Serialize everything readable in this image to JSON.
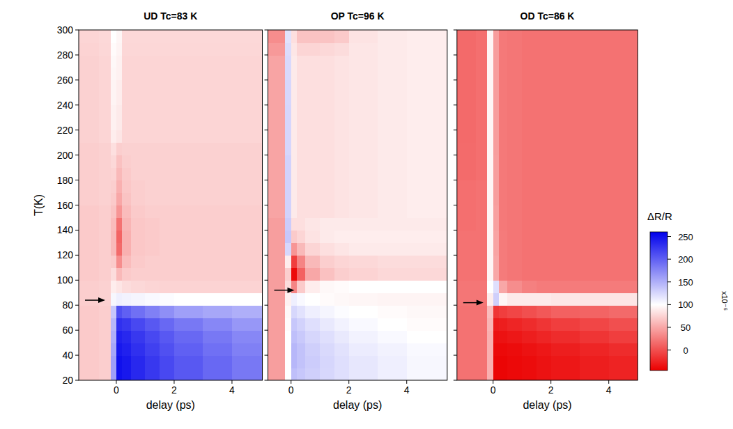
{
  "chart_data": [
    {
      "type": "heatmap",
      "title": "UD Tc=83 K",
      "xlabel": "delay (ps)",
      "ylabel": "T(K)",
      "xlim": [
        -1.3,
        5.05
      ],
      "ylim": [
        20,
        300
      ],
      "xticks": [
        0,
        2,
        4
      ],
      "yticks": [
        20,
        40,
        60,
        80,
        100,
        120,
        140,
        160,
        180,
        200,
        220,
        240,
        260,
        280,
        300
      ],
      "x_bins": [
        -1.3,
        -0.6,
        -0.2,
        0,
        0.2,
        0.5,
        1,
        1.5,
        2,
        3,
        4,
        5.05
      ],
      "y_bins": [
        20,
        30,
        40,
        50,
        60,
        70,
        80,
        90,
        100,
        110,
        120,
        130,
        140,
        150,
        160,
        170,
        180,
        190,
        200,
        210,
        220,
        230,
        240,
        250,
        260,
        270,
        280,
        290,
        300
      ],
      "arrow_y": 84,
      "cells": [
        [
          70,
          72,
          160,
          250,
          245,
          235,
          225,
          215,
          205,
          195,
          185
        ],
        [
          70,
          72,
          160,
          250,
          245,
          235,
          225,
          215,
          205,
          195,
          185
        ],
        [
          70,
          72,
          155,
          245,
          240,
          230,
          220,
          210,
          200,
          190,
          180
        ],
        [
          70,
          72,
          150,
          240,
          235,
          225,
          215,
          205,
          195,
          185,
          175
        ],
        [
          70,
          72,
          145,
          230,
          225,
          215,
          205,
          195,
          185,
          175,
          165
        ],
        [
          70,
          72,
          135,
          210,
          200,
          190,
          180,
          170,
          160,
          155,
          150
        ],
        [
          72,
          74,
          105,
          110,
          108,
          106,
          104,
          102,
          100,
          100,
          100
        ],
        [
          72,
          74,
          90,
          85,
          80,
          78,
          76,
          75,
          75,
          75,
          75
        ],
        [
          70,
          72,
          80,
          60,
          70,
          72,
          72,
          72,
          72,
          72,
          72
        ],
        [
          70,
          72,
          70,
          35,
          62,
          70,
          72,
          72,
          72,
          72,
          72
        ],
        [
          70,
          72,
          60,
          15,
          55,
          68,
          70,
          72,
          72,
          72,
          72
        ],
        [
          70,
          72,
          60,
          12,
          55,
          68,
          70,
          72,
          72,
          72,
          72
        ],
        [
          70,
          72,
          62,
          20,
          58,
          68,
          70,
          72,
          72,
          72,
          72
        ],
        [
          70,
          72,
          66,
          40,
          62,
          70,
          72,
          72,
          72,
          72,
          72
        ],
        [
          72,
          74,
          70,
          50,
          66,
          72,
          74,
          74,
          74,
          74,
          74
        ],
        [
          72,
          74,
          72,
          55,
          68,
          72,
          74,
          74,
          74,
          74,
          74
        ],
        [
          72,
          74,
          75,
          60,
          70,
          74,
          74,
          74,
          74,
          74,
          74
        ],
        [
          72,
          74,
          78,
          65,
          72,
          74,
          74,
          74,
          74,
          74,
          74
        ],
        [
          72,
          74,
          82,
          72,
          74,
          74,
          74,
          74,
          74,
          74,
          74
        ],
        [
          74,
          76,
          90,
          85,
          76,
          76,
          76,
          76,
          76,
          76,
          76
        ],
        [
          74,
          76,
          92,
          88,
          76,
          76,
          76,
          76,
          76,
          76,
          76
        ],
        [
          74,
          76,
          92,
          88,
          76,
          76,
          76,
          76,
          76,
          76,
          76
        ],
        [
          74,
          76,
          94,
          90,
          76,
          76,
          76,
          76,
          76,
          76,
          76
        ],
        [
          74,
          76,
          94,
          90,
          76,
          76,
          76,
          76,
          76,
          76,
          76
        ],
        [
          74,
          76,
          95,
          92,
          76,
          76,
          76,
          76,
          76,
          76,
          76
        ],
        [
          74,
          76,
          96,
          92,
          76,
          76,
          76,
          76,
          76,
          76,
          76
        ],
        [
          75,
          77,
          98,
          94,
          77,
          77,
          77,
          77,
          77,
          77,
          77
        ],
        [
          76,
          78,
          100,
          95,
          78,
          78,
          78,
          78,
          78,
          78,
          78
        ]
      ]
    },
    {
      "type": "heatmap",
      "title": "OP Tc=96 K",
      "xlabel": "delay (ps)",
      "tick_labels": "x",
      "xlim": [
        -0.8,
        5.4
      ],
      "ylim": [
        20,
        300
      ],
      "xticks": [
        0,
        2,
        4
      ],
      "yticks": [
        20,
        40,
        60,
        80,
        100,
        120,
        140,
        160,
        180,
        200,
        220,
        240,
        260,
        280,
        300
      ],
      "x_bins": [
        -0.8,
        -0.5,
        -0.2,
        0,
        0.2,
        0.5,
        1,
        1.5,
        2,
        3,
        4,
        5.4
      ],
      "y_bins": [
        20,
        30,
        40,
        50,
        60,
        70,
        80,
        90,
        100,
        110,
        120,
        130,
        140,
        150,
        160,
        170,
        180,
        190,
        200,
        210,
        220,
        230,
        240,
        250,
        260,
        270,
        280,
        290,
        300
      ],
      "arrow_y": 92,
      "cells": [
        [
          45,
          45,
          100,
          140,
          135,
          130,
          125,
          120,
          115,
          110,
          105
        ],
        [
          45,
          45,
          100,
          145,
          138,
          132,
          126,
          120,
          115,
          110,
          105
        ],
        [
          45,
          45,
          100,
          145,
          138,
          130,
          124,
          118,
          112,
          108,
          104
        ],
        [
          45,
          45,
          100,
          140,
          134,
          126,
          120,
          114,
          108,
          104,
          100
        ],
        [
          45,
          45,
          98,
          135,
          128,
          120,
          114,
          108,
          104,
          100,
          98
        ],
        [
          45,
          45,
          96,
          125,
          118,
          110,
          106,
          102,
          100,
          98,
          96
        ],
        [
          45,
          45,
          92,
          110,
          104,
          100,
          98,
          96,
          95,
          94,
          94
        ],
        [
          45,
          45,
          80,
          30,
          70,
          90,
          96,
          98,
          100,
          100,
          100
        ],
        [
          45,
          45,
          72,
          -40,
          10,
          50,
          65,
          72,
          75,
          78,
          78
        ],
        [
          45,
          45,
          90,
          -10,
          30,
          60,
          72,
          76,
          78,
          80,
          80
        ],
        [
          45,
          45,
          125,
          40,
          60,
          76,
          82,
          85,
          88,
          88,
          88
        ],
        [
          45,
          45,
          135,
          70,
          76,
          84,
          88,
          90,
          90,
          90,
          90
        ],
        [
          45,
          45,
          132,
          82,
          82,
          86,
          88,
          88,
          88,
          88,
          88
        ],
        [
          48,
          48,
          128,
          88,
          82,
          82,
          82,
          84,
          86,
          88,
          90
        ],
        [
          48,
          48,
          128,
          88,
          82,
          82,
          82,
          84,
          86,
          88,
          90
        ],
        [
          48,
          48,
          128,
          88,
          82,
          82,
          82,
          84,
          86,
          88,
          90
        ],
        [
          48,
          48,
          128,
          88,
          82,
          82,
          82,
          84,
          86,
          88,
          90
        ],
        [
          48,
          48,
          128,
          88,
          82,
          82,
          82,
          84,
          86,
          88,
          90
        ],
        [
          48,
          48,
          126,
          88,
          82,
          82,
          82,
          84,
          86,
          88,
          90
        ],
        [
          48,
          48,
          126,
          88,
          82,
          82,
          82,
          84,
          86,
          88,
          90
        ],
        [
          48,
          48,
          126,
          88,
          82,
          82,
          82,
          84,
          86,
          88,
          90
        ],
        [
          48,
          48,
          126,
          88,
          82,
          82,
          82,
          84,
          86,
          88,
          90
        ],
        [
          48,
          48,
          125,
          88,
          82,
          82,
          82,
          84,
          86,
          88,
          90
        ],
        [
          48,
          48,
          125,
          88,
          82,
          82,
          82,
          84,
          86,
          88,
          90
        ],
        [
          48,
          48,
          124,
          88,
          82,
          82,
          82,
          84,
          86,
          88,
          90
        ],
        [
          48,
          48,
          124,
          88,
          82,
          82,
          82,
          84,
          86,
          88,
          90
        ],
        [
          42,
          42,
          122,
          86,
          76,
          76,
          78,
          80,
          86,
          88,
          90
        ],
        [
          35,
          35,
          118,
          82,
          66,
          66,
          66,
          70,
          84,
          88,
          90
        ]
      ]
    },
    {
      "type": "heatmap",
      "title": "OD Tc=86 K",
      "xlabel": "delay (ps)",
      "tick_labels": "x",
      "xlim": [
        -1.25,
        5.0
      ],
      "ylim": [
        20,
        300
      ],
      "xticks": [
        0,
        2,
        4
      ],
      "yticks": [
        20,
        40,
        60,
        80,
        100,
        120,
        140,
        160,
        180,
        200,
        220,
        240,
        260,
        280,
        300
      ],
      "x_bins": [
        -1.25,
        -0.6,
        -0.2,
        0,
        0.2,
        0.5,
        1,
        1.5,
        2,
        3,
        4,
        5.0
      ],
      "y_bins": [
        20,
        30,
        40,
        50,
        60,
        70,
        80,
        90,
        100,
        110,
        120,
        130,
        140,
        150,
        160,
        170,
        180,
        190,
        200,
        210,
        220,
        230,
        240,
        250,
        260,
        270,
        280,
        290,
        300
      ],
      "arrow_y": 82,
      "cells": [
        [
          20,
          20,
          55,
          -42,
          -42,
          -40,
          -38,
          -35,
          -32,
          -28,
          -25
        ],
        [
          20,
          20,
          55,
          -42,
          -42,
          -40,
          -38,
          -35,
          -32,
          -28,
          -25
        ],
        [
          20,
          20,
          55,
          -40,
          -40,
          -38,
          -35,
          -32,
          -28,
          -24,
          -20
        ],
        [
          20,
          20,
          55,
          -36,
          -35,
          -32,
          -28,
          -24,
          -20,
          -15,
          -10
        ],
        [
          20,
          20,
          58,
          -30,
          -28,
          -24,
          -20,
          -15,
          -10,
          -5,
          0
        ],
        [
          20,
          20,
          62,
          -15,
          -10,
          -5,
          0,
          5,
          10,
          12,
          15
        ],
        [
          22,
          22,
          90,
          130,
          95,
          88,
          88,
          88,
          86,
          85,
          85
        ],
        [
          22,
          22,
          100,
          120,
          50,
          35,
          28,
          25,
          25,
          25,
          25
        ],
        [
          20,
          20,
          95,
          50,
          25,
          22,
          20,
          20,
          20,
          20,
          20
        ],
        [
          20,
          20,
          95,
          50,
          25,
          22,
          20,
          20,
          20,
          20,
          20
        ],
        [
          20,
          20,
          95,
          48,
          25,
          22,
          20,
          20,
          20,
          20,
          20
        ],
        [
          20,
          20,
          95,
          48,
          25,
          22,
          20,
          20,
          20,
          20,
          20
        ],
        [
          18,
          20,
          95,
          46,
          24,
          22,
          20,
          20,
          20,
          20,
          20
        ],
        [
          18,
          20,
          95,
          46,
          24,
          22,
          20,
          20,
          20,
          20,
          20
        ],
        [
          18,
          20,
          95,
          45,
          24,
          22,
          20,
          20,
          20,
          20,
          20
        ],
        [
          18,
          20,
          95,
          45,
          24,
          22,
          20,
          20,
          20,
          20,
          20
        ],
        [
          16,
          18,
          95,
          45,
          24,
          22,
          20,
          20,
          20,
          20,
          20
        ],
        [
          16,
          18,
          95,
          45,
          24,
          22,
          20,
          20,
          20,
          20,
          20
        ],
        [
          16,
          18,
          95,
          44,
          24,
          22,
          20,
          20,
          20,
          20,
          20
        ],
        [
          15,
          18,
          95,
          44,
          24,
          22,
          20,
          20,
          20,
          20,
          20
        ],
        [
          15,
          18,
          95,
          44,
          24,
          22,
          20,
          20,
          20,
          20,
          20
        ],
        [
          15,
          18,
          95,
          44,
          24,
          22,
          20,
          20,
          20,
          20,
          20
        ],
        [
          15,
          18,
          95,
          44,
          24,
          22,
          20,
          20,
          20,
          20,
          20
        ],
        [
          15,
          18,
          95,
          44,
          24,
          22,
          20,
          20,
          20,
          20,
          20
        ],
        [
          15,
          18,
          95,
          44,
          24,
          22,
          20,
          20,
          20,
          20,
          20
        ],
        [
          15,
          18,
          95,
          44,
          24,
          22,
          20,
          20,
          20,
          20,
          20
        ],
        [
          15,
          18,
          95,
          44,
          24,
          22,
          20,
          20,
          20,
          20,
          20
        ],
        [
          15,
          18,
          95,
          44,
          24,
          22,
          20,
          20,
          20,
          20,
          20
        ]
      ],
      "colorbar": {
        "label": "ΔR/R",
        "unit_label": "x10⁻⁶",
        "range": [
          -45,
          260
        ],
        "center": 100,
        "ticks": [
          0,
          50,
          100,
          150,
          200,
          250
        ],
        "colors": [
          "#eb0000",
          "#ffffff",
          "#0000eb"
        ]
      }
    }
  ]
}
